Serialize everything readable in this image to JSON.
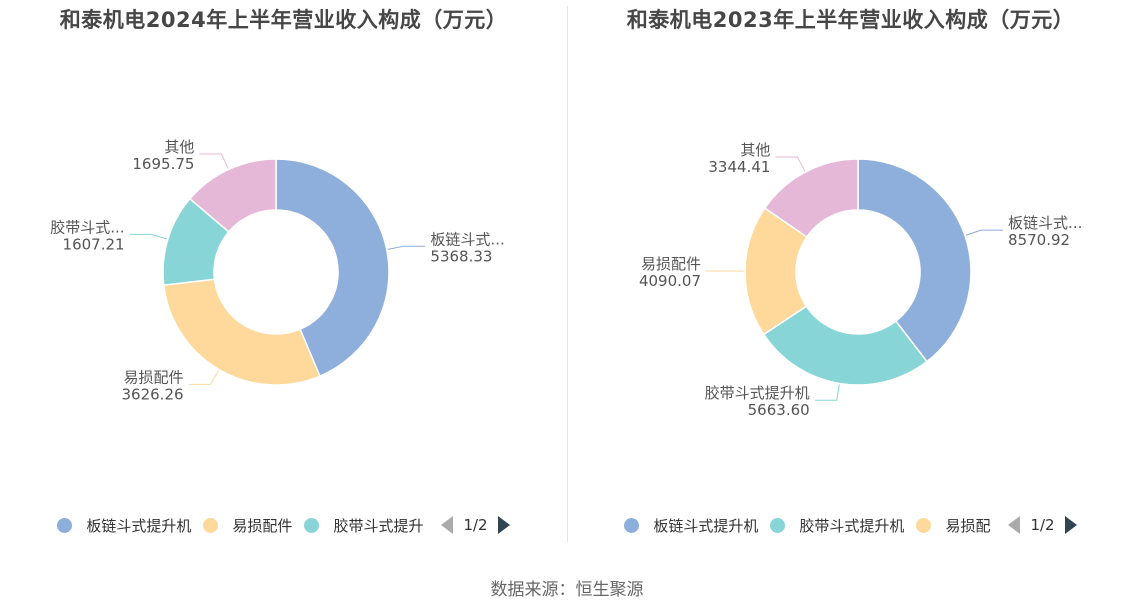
{
  "source_label": "数据来源：恒生聚源",
  "chart_data": [
    {
      "type": "pie",
      "title": "和泰机电2024年上半年营业收入构成（万元）",
      "slices": [
        {
          "name": "板链斗式提升机",
          "label": "板链斗式...",
          "value": 5368.33,
          "value_label": "5368.33",
          "color": "#8eaedb"
        },
        {
          "name": "易损配件",
          "label": "易损配件",
          "value": 3626.26,
          "value_label": "3626.26",
          "color": "#fed99b"
        },
        {
          "name": "胶带斗式提升机",
          "label": "胶带斗式...",
          "value": 1607.21,
          "value_label": "1607.21",
          "color": "#88d5d8"
        },
        {
          "name": "其他",
          "label": "其他",
          "value": 1695.75,
          "value_label": "1695.75",
          "color": "#e6b8d7"
        }
      ],
      "legend": {
        "items": [
          {
            "label": "板链斗式提升机",
            "color": "#8eaedb"
          },
          {
            "label": "易损配件",
            "color": "#fed99b"
          },
          {
            "label": "胶带斗式提升",
            "color": "#88d5d8"
          }
        ],
        "page": "1/2",
        "placement": "bottom"
      }
    },
    {
      "type": "pie",
      "title": "和泰机电2023年上半年营业收入构成（万元）",
      "slices": [
        {
          "name": "板链斗式提升机",
          "label": "板链斗式...",
          "value": 8570.92,
          "value_label": "8570.92",
          "color": "#8eaedb"
        },
        {
          "name": "胶带斗式提升机",
          "label": "胶带斗式提升机",
          "value": 5663.6,
          "value_label": "5663.60",
          "color": "#88d5d8"
        },
        {
          "name": "易损配件",
          "label": "易损配件",
          "value": 4090.07,
          "value_label": "4090.07",
          "color": "#fed99b"
        },
        {
          "name": "其他",
          "label": "其他",
          "value": 3344.41,
          "value_label": "3344.41",
          "color": "#e6b8d7"
        }
      ],
      "legend": {
        "items": [
          {
            "label": "板链斗式提升机",
            "color": "#8eaedb"
          },
          {
            "label": "胶带斗式提升机",
            "color": "#88d5d8"
          },
          {
            "label": "易损配"
          }
        ],
        "page": "1/2",
        "placement": "bottom"
      }
    }
  ]
}
